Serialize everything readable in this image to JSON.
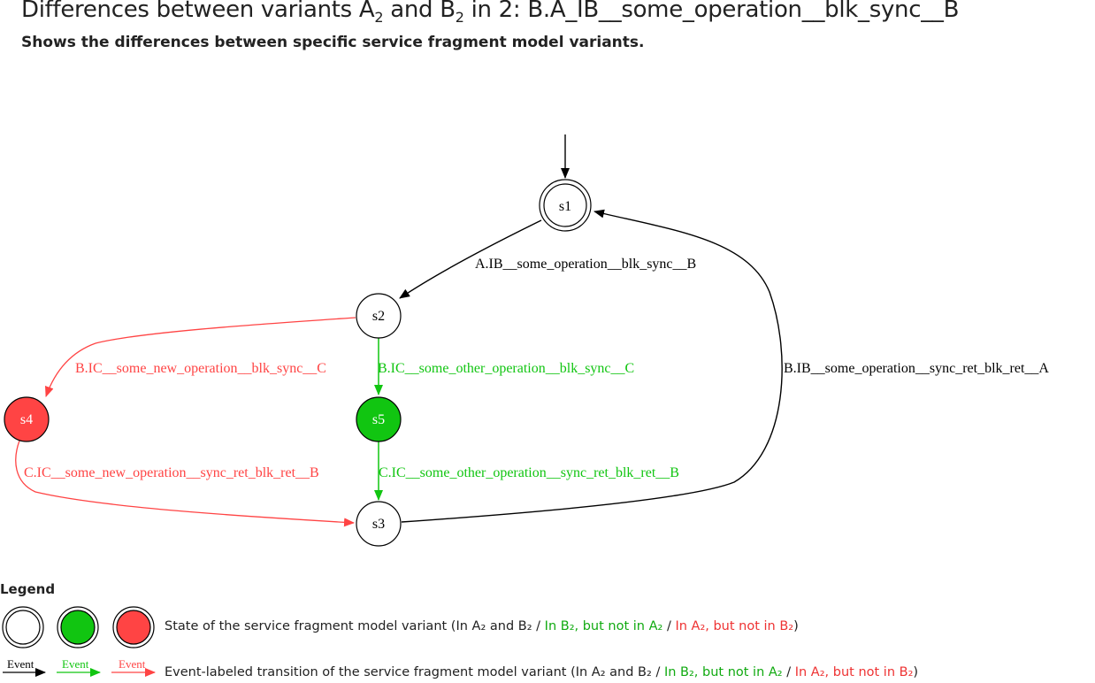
{
  "page": {
    "title_prefix": "Differences between variants A",
    "title_sub_a": "2",
    "title_mid": " and B",
    "title_sub_b": "2",
    "title_suffix": " in 2: B.A_IB__some_operation__blk_sync__B",
    "subtitle": "Shows the differences between specific service fragment model variants."
  },
  "colors": {
    "common": "#000000",
    "added": "#11c511",
    "removed": "#ff4444"
  },
  "states": {
    "s1": "s1",
    "s2": "s2",
    "s3": "s3",
    "s4": "s4",
    "s5": "s5"
  },
  "transitions": {
    "t_s1_s2": "A.IB__some_operation__blk_sync__B",
    "t_s2_s4": "B.IC__some_new_operation__blk_sync__C",
    "t_s2_s5": "B.IC__some_other_operation__blk_sync__C",
    "t_s4_s3": "C.IC__some_new_operation__sync_ret_blk_ret__B",
    "t_s5_s3": "C.IC__some_other_operation__sync_ret_blk_ret__B",
    "t_s3_s1": "B.IB__some_operation__sync_ret_blk_ret__A"
  },
  "legend": {
    "title": "Legend",
    "event_label": "Event",
    "state_text_1": "State of the service fragment model variant (In A",
    "state_text_2": " and B",
    "state_text_3": " / ",
    "state_green": "In B₂, but not in A₂",
    "state_text_4": " / ",
    "state_red": "In A₂, but not in B₂",
    "state_text_5": ")",
    "trans_text_1": "Event-labeled transition of the service fragment model variant (In A",
    "trans_text_2": " and B",
    "trans_text_3": " / ",
    "trans_green": "In B₂, but not in A₂",
    "trans_text_4": " / ",
    "trans_red": "In A₂, but not in B₂",
    "trans_text_5": ")",
    "sub2": "₂"
  }
}
